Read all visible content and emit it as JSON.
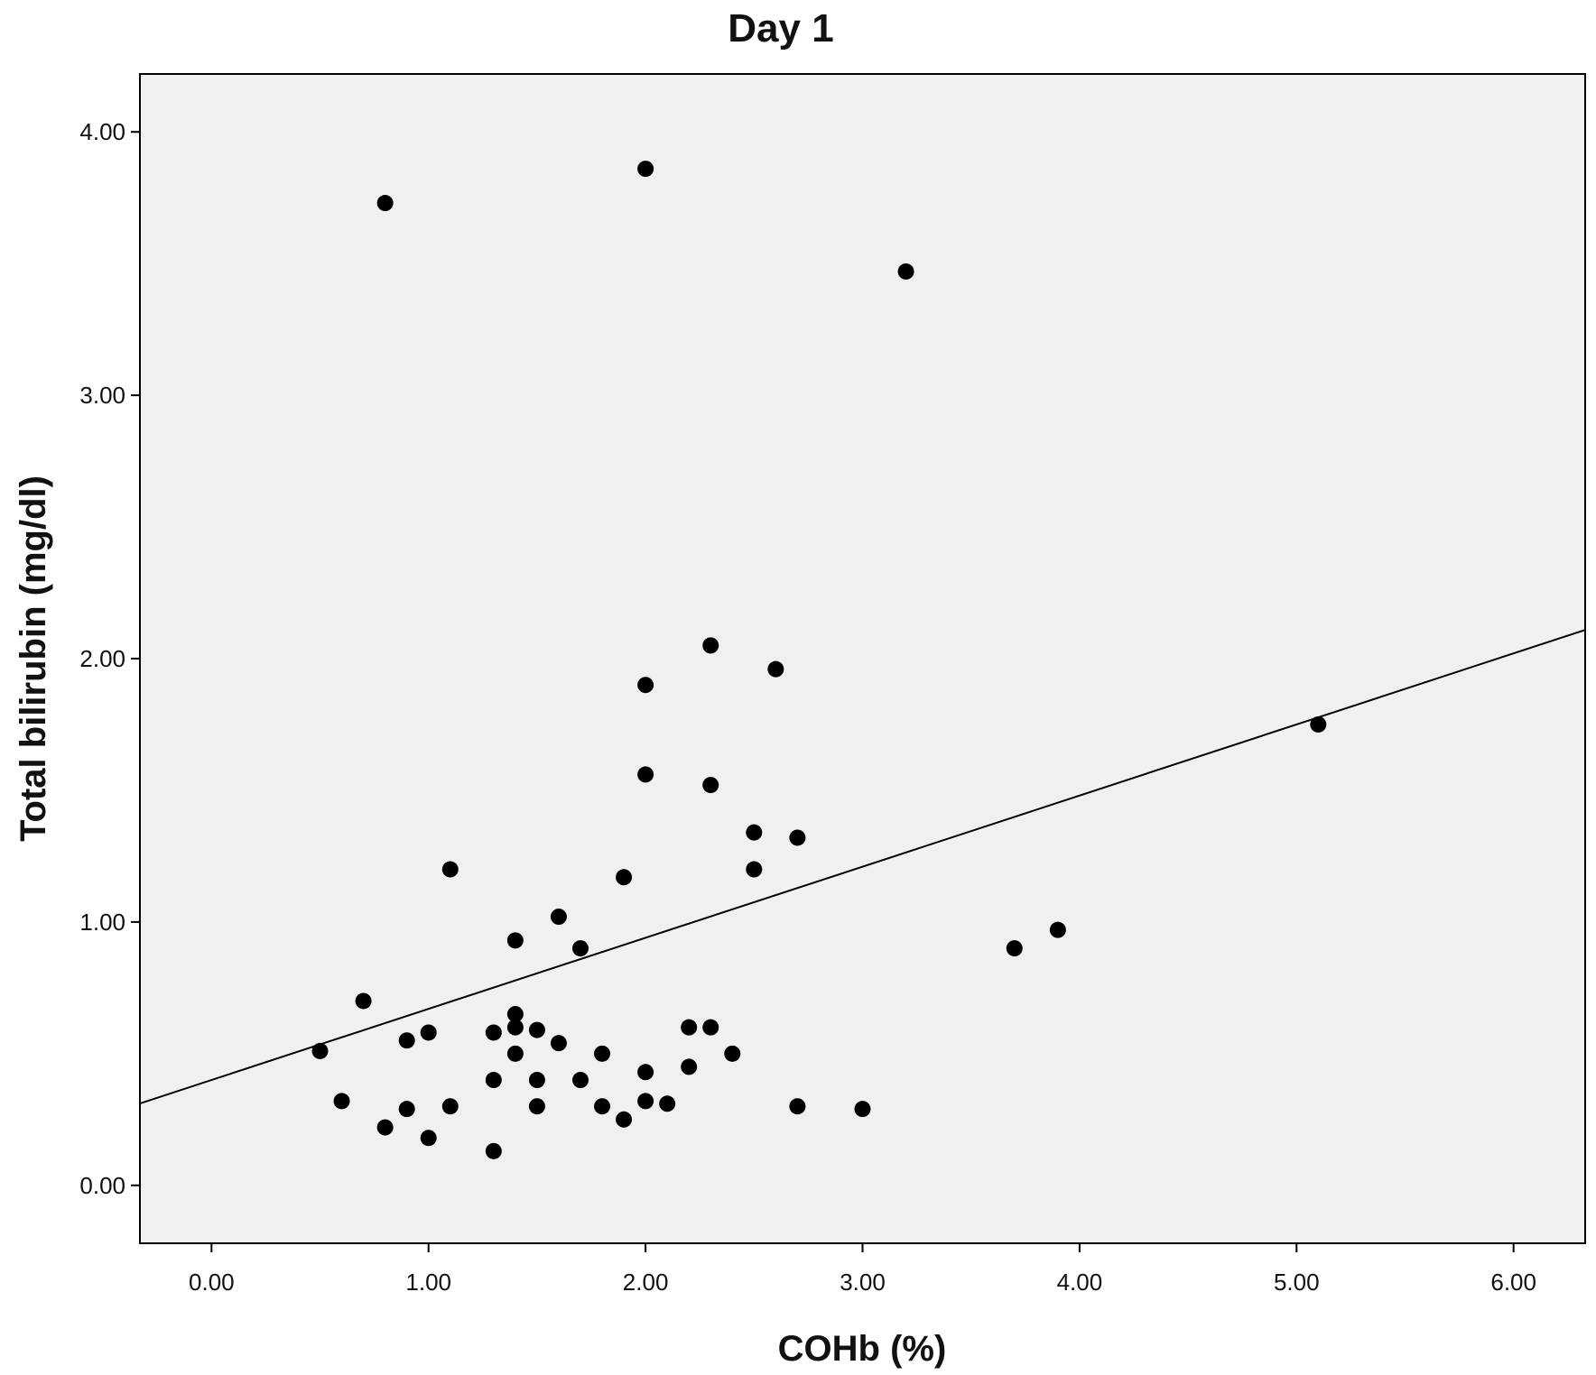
{
  "chart_data": {
    "type": "scatter",
    "title": "Day 1",
    "xlabel": "COHb (%)",
    "ylabel": "Total bilirubin (mg/dl)",
    "xlim": [
      -0.33,
      6.33
    ],
    "ylim": [
      -0.22,
      4.22
    ],
    "x_ticks": [
      "0.00",
      "1.00",
      "2.00",
      "3.00",
      "4.00",
      "5.00",
      "6.00"
    ],
    "y_ticks": [
      "0.00",
      "1.00",
      "2.00",
      "3.00",
      "4.00"
    ],
    "x_tick_values": [
      0,
      1,
      2,
      3,
      4,
      5,
      6
    ],
    "y_tick_values": [
      0,
      1,
      2,
      3,
      4
    ],
    "grid": false,
    "background": "#f0f0f0",
    "point_color": "#000000",
    "fit_line": {
      "intercept": 0.4,
      "slope": 0.27
    },
    "points": [
      {
        "x": 0.8,
        "y": 3.73
      },
      {
        "x": 2.0,
        "y": 3.86
      },
      {
        "x": 3.2,
        "y": 3.47
      },
      {
        "x": 2.3,
        "y": 2.05
      },
      {
        "x": 2.6,
        "y": 1.96
      },
      {
        "x": 2.0,
        "y": 1.9
      },
      {
        "x": 5.1,
        "y": 1.75
      },
      {
        "x": 2.0,
        "y": 1.56
      },
      {
        "x": 2.3,
        "y": 1.52
      },
      {
        "x": 2.5,
        "y": 1.34
      },
      {
        "x": 2.7,
        "y": 1.32
      },
      {
        "x": 1.1,
        "y": 1.2
      },
      {
        "x": 2.5,
        "y": 1.2
      },
      {
        "x": 1.9,
        "y": 1.17
      },
      {
        "x": 1.6,
        "y": 1.02
      },
      {
        "x": 3.9,
        "y": 0.97
      },
      {
        "x": 1.4,
        "y": 0.93
      },
      {
        "x": 1.7,
        "y": 0.9
      },
      {
        "x": 3.7,
        "y": 0.9
      },
      {
        "x": 0.7,
        "y": 0.7
      },
      {
        "x": 1.4,
        "y": 0.65
      },
      {
        "x": 1.4,
        "y": 0.6
      },
      {
        "x": 1.5,
        "y": 0.59
      },
      {
        "x": 2.2,
        "y": 0.6
      },
      {
        "x": 2.3,
        "y": 0.6
      },
      {
        "x": 1.0,
        "y": 0.58
      },
      {
        "x": 1.3,
        "y": 0.58
      },
      {
        "x": 0.9,
        "y": 0.55
      },
      {
        "x": 1.6,
        "y": 0.54
      },
      {
        "x": 0.5,
        "y": 0.51
      },
      {
        "x": 1.4,
        "y": 0.5
      },
      {
        "x": 1.8,
        "y": 0.5
      },
      {
        "x": 2.4,
        "y": 0.5
      },
      {
        "x": 2.2,
        "y": 0.45
      },
      {
        "x": 2.0,
        "y": 0.43
      },
      {
        "x": 1.3,
        "y": 0.4
      },
      {
        "x": 1.5,
        "y": 0.4
      },
      {
        "x": 1.7,
        "y": 0.4
      },
      {
        "x": 0.6,
        "y": 0.32
      },
      {
        "x": 2.0,
        "y": 0.32
      },
      {
        "x": 2.1,
        "y": 0.31
      },
      {
        "x": 1.1,
        "y": 0.3
      },
      {
        "x": 1.5,
        "y": 0.3
      },
      {
        "x": 1.8,
        "y": 0.3
      },
      {
        "x": 2.7,
        "y": 0.3
      },
      {
        "x": 0.9,
        "y": 0.29
      },
      {
        "x": 3.0,
        "y": 0.29
      },
      {
        "x": 1.9,
        "y": 0.25
      },
      {
        "x": 0.8,
        "y": 0.22
      },
      {
        "x": 1.0,
        "y": 0.18
      },
      {
        "x": 1.3,
        "y": 0.13
      }
    ]
  }
}
